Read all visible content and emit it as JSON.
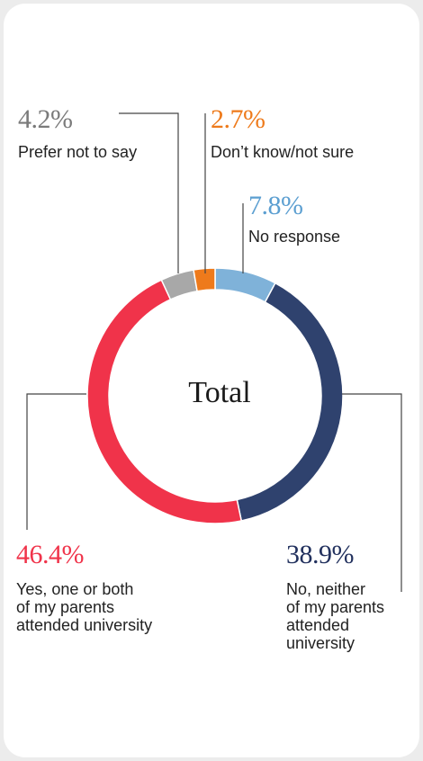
{
  "chart_data": {
    "type": "pie",
    "title": "",
    "center_label": "Total",
    "slices": [
      {
        "key": "no_response",
        "percent_label": "7.8%",
        "label": "No response",
        "value": 7.8,
        "color": "#7fb2d9"
      },
      {
        "key": "no",
        "percent_label": "38.9%",
        "label": "No, neither of my parents attended university",
        "value": 38.9,
        "color": "#2f426e"
      },
      {
        "key": "yes",
        "percent_label": "46.4%",
        "label": "Yes, one or both of my parents attended university",
        "value": 46.4,
        "color": "#f0334a"
      },
      {
        "key": "prefer_not",
        "percent_label": "4.2%",
        "label": "Prefer not to say",
        "value": 4.2,
        "color": "#a8a8a8"
      },
      {
        "key": "dont_know",
        "percent_label": "2.7%",
        "label": "Don’t know/not sure",
        "value": 2.7,
        "color": "#ee7a1b"
      }
    ]
  },
  "labels": {
    "prefer_not": {
      "pct": "4.2%",
      "lines": [
        "Prefer not to say"
      ],
      "color": "#7a7a7a"
    },
    "dont_know": {
      "pct": "2.7%",
      "lines": [
        "Don’t know/not sure"
      ],
      "color": "#ee7a1b"
    },
    "no_response": {
      "pct": "7.8%",
      "lines": [
        "No response"
      ],
      "color": "#5c9fd1"
    },
    "yes": {
      "pct": "46.4%",
      "lines": [
        "Yes, one or both",
        "of my parents",
        "attended university"
      ],
      "color": "#f0334a"
    },
    "no": {
      "pct": "38.9%",
      "lines": [
        "No, neither",
        "of my parents",
        "attended",
        "university"
      ],
      "color": "#22315e"
    }
  }
}
